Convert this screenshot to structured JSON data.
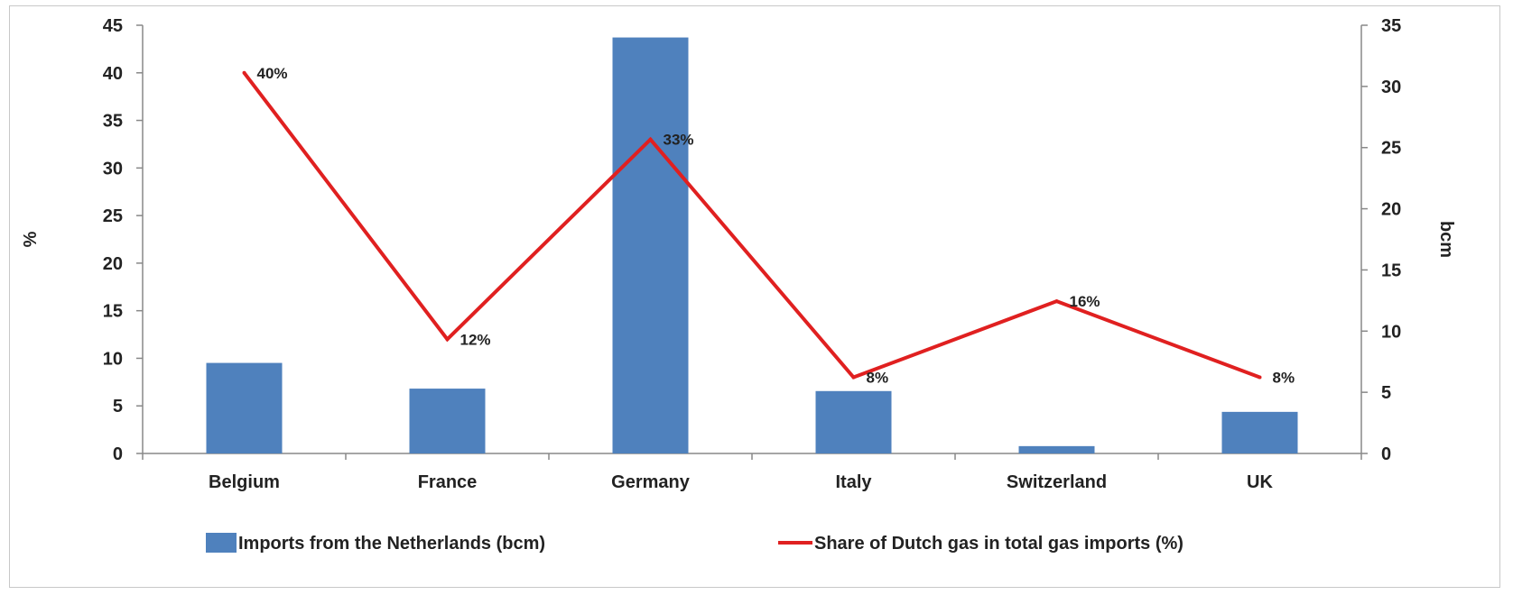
{
  "chart_data": {
    "type": "bar+line",
    "title": "",
    "categories": [
      "Belgium",
      "France",
      "Germany",
      "Italy",
      "Switzerland",
      "UK"
    ],
    "bar_series": {
      "name": "Imports from the Netherlands (bcm)",
      "axis": "right",
      "color": "#4f81bd",
      "values": [
        7.4,
        5.3,
        34.0,
        5.1,
        0.6,
        3.4
      ]
    },
    "line_series": {
      "name": "Share of Dutch gas in total gas imports (%)",
      "axis": "left",
      "color": "#e02020",
      "values": [
        40,
        12,
        33,
        8,
        16,
        8
      ],
      "labels": [
        "40%",
        "12%",
        "33%",
        "8%",
        "16%",
        "8%"
      ]
    },
    "y_left": {
      "label": "%",
      "min": 0,
      "max": 45,
      "ticks": [
        "0",
        "5",
        "10",
        "15",
        "20",
        "25",
        "30",
        "35",
        "40",
        "45"
      ]
    },
    "y_right": {
      "label": "bcm",
      "min": 0,
      "max": 35,
      "ticks": [
        "0",
        "5",
        "10",
        "15",
        "20",
        "25",
        "30",
        "35"
      ]
    },
    "grid": false,
    "legend_position": "bottom"
  }
}
